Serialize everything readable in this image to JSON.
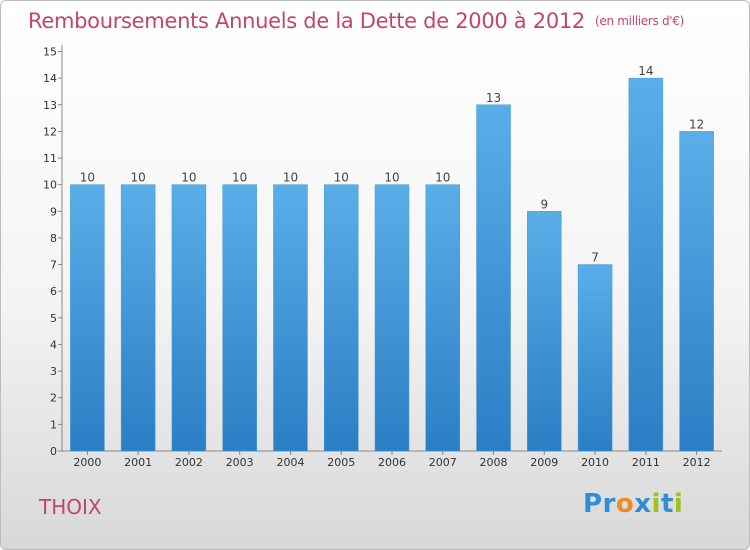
{
  "header": {
    "title": "Remboursements Annuels de la Dette de 2000 à 2012",
    "unit": "(en milliers d'€)"
  },
  "footer": {
    "commune": "THOIX",
    "logo_text": "Proxiti"
  },
  "colors": {
    "title": "#c2456d",
    "bar_top": "#5aaee8",
    "bar_bottom": "#2a7ec4",
    "logo_blue": "#2e8fd6",
    "logo_orange": "#f08a1c",
    "logo_green": "#9ac31c"
  },
  "chart_data": {
    "type": "bar",
    "title": "Remboursements Annuels de la Dette de 2000 à 2012",
    "subtitle": "(en milliers d'€)",
    "xlabel": "",
    "ylabel": "",
    "categories": [
      "2000",
      "2001",
      "2002",
      "2003",
      "2004",
      "2005",
      "2006",
      "2007",
      "2008",
      "2009",
      "2010",
      "2011",
      "2012"
    ],
    "values": [
      10,
      10,
      10,
      10,
      10,
      10,
      10,
      10,
      13,
      9,
      7,
      14,
      12
    ],
    "ylim": [
      0,
      15
    ],
    "yticks": [
      0,
      1,
      2,
      3,
      4,
      5,
      6,
      7,
      8,
      9,
      10,
      11,
      12,
      13,
      14,
      15
    ],
    "grid": false,
    "legend": "none"
  }
}
